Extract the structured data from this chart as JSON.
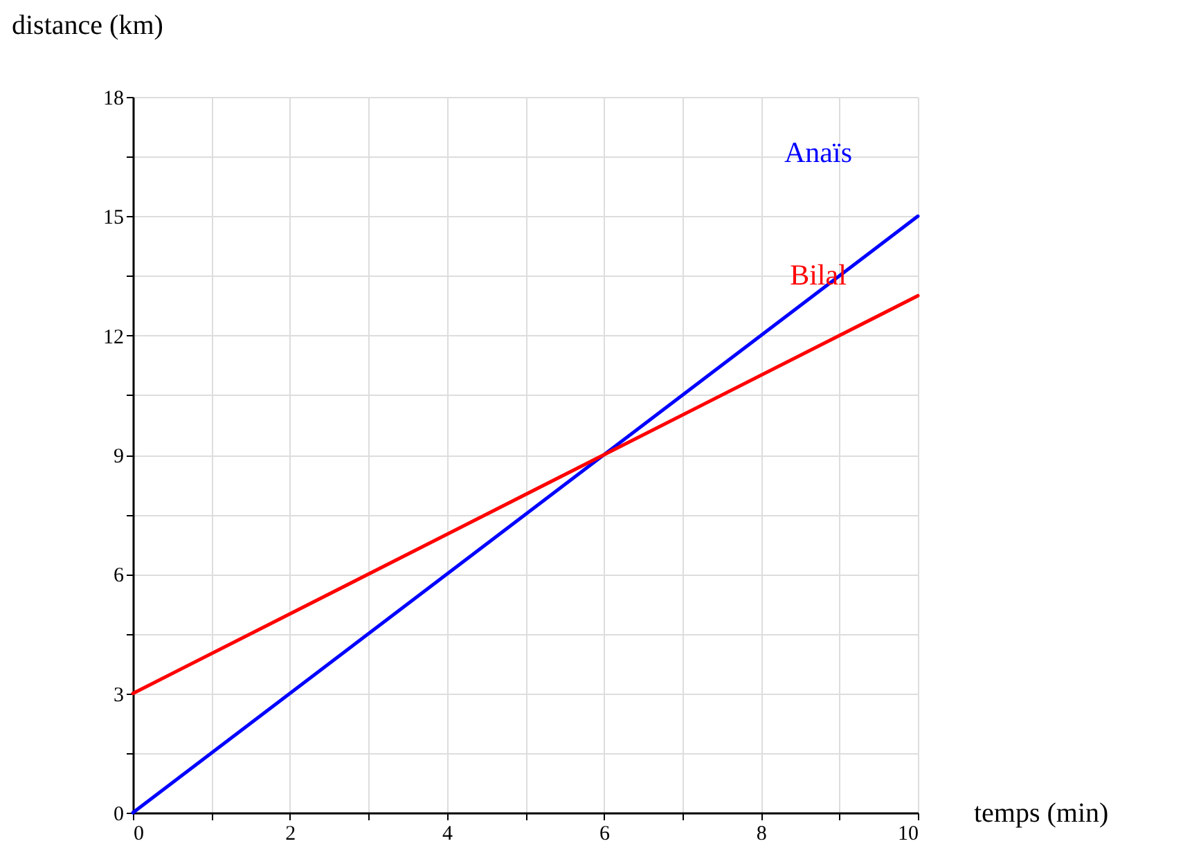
{
  "chart_data": {
    "type": "line",
    "xlabel": "temps (min)",
    "ylabel": "distance (km)",
    "x": [
      0,
      10
    ],
    "series": [
      {
        "name": "Anaïs",
        "color": "#0000ff",
        "values": [
          0,
          15
        ]
      },
      {
        "name": "Bilal",
        "color": "#ff0000",
        "values": [
          3,
          13
        ]
      }
    ],
    "xlim": [
      0,
      10
    ],
    "ylim": [
      0,
      18
    ],
    "xticks": [
      0,
      {
        "value": 1,
        "label": null
      },
      2,
      {
        "value": 3,
        "label": null
      },
      4,
      {
        "value": 5,
        "label": null
      },
      6,
      {
        "value": 7,
        "label": null
      },
      8,
      {
        "value": 9,
        "label": null
      },
      10
    ],
    "yticks": [
      0,
      {
        "value": 1.5,
        "label": null
      },
      3,
      {
        "value": 4.5,
        "label": null
      },
      6,
      {
        "value": 7.5,
        "label": null
      },
      9,
      {
        "value": 10.5,
        "label": null
      },
      12,
      {
        "value": 13.5,
        "label": null
      },
      15,
      {
        "value": 16.5,
        "label": null
      },
      18
    ],
    "grid": true,
    "legend": false,
    "marker": "none",
    "line_style": "solid"
  }
}
